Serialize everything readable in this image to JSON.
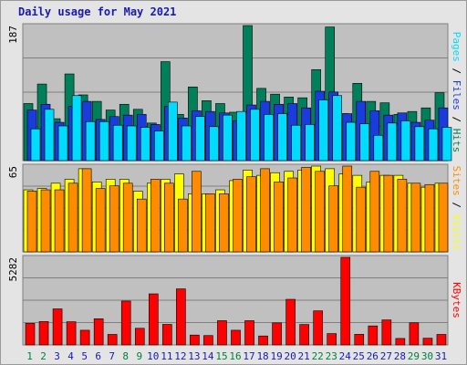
{
  "chart_data": {
    "type": "bar",
    "title": "Daily usage for May 2021",
    "categories": [
      "1",
      "2",
      "3",
      "4",
      "5",
      "6",
      "7",
      "8",
      "9",
      "10",
      "11",
      "12",
      "13",
      "14",
      "15",
      "16",
      "17",
      "18",
      "19",
      "20",
      "21",
      "22",
      "23",
      "24",
      "25",
      "26",
      "27",
      "28",
      "29",
      "30",
      "31"
    ],
    "weekend_days": [
      "1",
      "2",
      "8",
      "9",
      "15",
      "16",
      "22",
      "23",
      "29",
      "30"
    ],
    "panels": [
      {
        "id": "hits-files-pages",
        "ymax_label": "187",
        "ymax": 187,
        "right_label_parts": [
          "Pages",
          "Files",
          "Hits"
        ],
        "right_label_seps": [
          "/",
          "/"
        ],
        "series": [
          {
            "name": "Hits",
            "values": [
              79,
              106,
              58,
              120,
              91,
              82,
              70,
              78,
              71,
              52,
              137,
              64,
              102,
              83,
              79,
              67,
              187,
              100,
              92,
              88,
              87,
              126,
              185,
              65,
              107,
              82,
              80,
              64,
              68,
              73,
              94
            ]
          },
          {
            "name": "Files",
            "values": [
              70,
              78,
              53,
              75,
              82,
              57,
              61,
              63,
              64,
              50,
              75,
              59,
              69,
              68,
              66,
              55,
              77,
              82,
              78,
              79,
              73,
              96,
              95,
              65,
              82,
              69,
              63,
              66,
              53,
              56,
              73
            ]
          },
          {
            "name": "Pages",
            "values": [
              44,
              71,
              48,
              90,
              54,
              54,
              49,
              48,
              46,
              41,
              81,
              48,
              61,
              47,
              63,
              68,
              71,
              64,
              65,
              49,
              50,
              84,
              90,
              53,
              51,
              35,
              52,
              55,
              47,
              44,
              46
            ]
          }
        ],
        "colors": {
          "Hits": "#00805a",
          "Files": "#1a3cdc",
          "Pages": "#00dcff"
        }
      },
      {
        "id": "visits-sites",
        "ymax_label": "65",
        "ymax": 65,
        "right_label_parts": [
          "Sites",
          "Visits"
        ],
        "right_label_seps": [
          "/"
        ],
        "series": [
          {
            "name": "Visits",
            "values": [
              47,
              48,
              52,
              55,
              63,
              53,
              55,
              55,
              46,
              52,
              55,
              59,
              44,
              44,
              47,
              54,
              62,
              58,
              60,
              61,
              62,
              65,
              63,
              59,
              58,
              53,
              58,
              58,
              52,
              49,
              52
            ]
          },
          {
            "name": "Sites",
            "values": [
              46,
              47,
              47,
              52,
              63,
              48,
              50,
              52,
              40,
              55,
              52,
              40,
              61,
              44,
              44,
              55,
              57,
              63,
              53,
              56,
              64,
              61,
              50,
              65,
              49,
              61,
              58,
              55,
              52,
              51,
              52
            ]
          }
        ],
        "colors": {
          "Visits": "#ffff00",
          "Sites": "#ff8c00"
        }
      },
      {
        "id": "kbytes",
        "ymax_label": "5282",
        "ymax": 5282,
        "right_label_parts": [
          "KBytes"
        ],
        "right_label_seps": [],
        "series": [
          {
            "name": "KBytes",
            "values": [
              1300,
              1413,
              2173,
              1398,
              885,
              1577,
              633,
              2645,
              1003,
              3080,
              1238,
              3380,
              595,
              565,
              1462,
              885,
              1462,
              540,
              1328,
              2749,
              1232,
              2055,
              683,
              5282,
              640,
              1147,
              1508,
              390,
              1334,
              405,
              633
            ]
          }
        ],
        "colors": {
          "KBytes": "#ff0000"
        }
      }
    ],
    "colors": {
      "title": "#1a1ab0",
      "weekday_label": "#1a1ab0",
      "weekend_label": "#008040",
      "panel_bg": "#c0c0c0",
      "grid": "#808080"
    }
  }
}
